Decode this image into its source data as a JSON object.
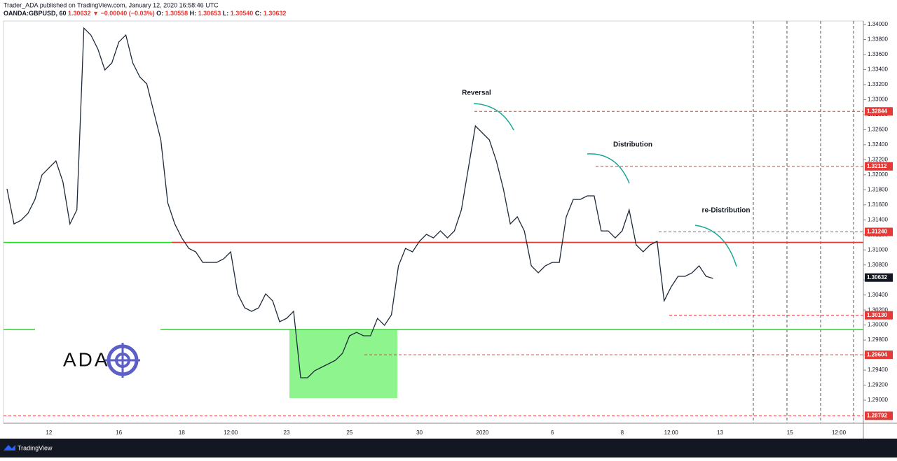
{
  "chart_data": {
    "type": "line",
    "title": "Trader_ADA published on TradingView.com, January 12, 2020 16:58:46 UTC",
    "symbol": "OANDA:GBPUSD, 60",
    "last": "1.30632",
    "change": "▼ −0.00040 (−0.03%)",
    "ohlc": [
      {
        "key": "O:",
        "value": "1.30558"
      },
      {
        "key": "H:",
        "value": "1.30653"
      },
      {
        "key": "L:",
        "value": "1.30540"
      },
      {
        "key": "C:",
        "value": "1.30632"
      }
    ],
    "categories": [
      null,
      null,
      null,
      null,
      null,
      null,
      "12",
      null,
      null,
      null,
      null,
      null,
      null,
      null,
      null,
      null,
      "16",
      null,
      null,
      null,
      null,
      null,
      null,
      null,
      null,
      "18",
      null,
      null,
      null,
      null,
      null,
      null,
      "12:00",
      null,
      null,
      null,
      null,
      null,
      null,
      null,
      "23",
      null,
      null,
      null,
      null,
      null,
      null,
      null,
      null,
      "25",
      null,
      null,
      null,
      null,
      null,
      null,
      null,
      null,
      null,
      "30",
      null,
      null,
      null,
      null,
      null,
      null,
      null,
      null,
      "2020",
      null,
      null,
      null,
      null,
      null,
      null,
      null,
      null,
      null,
      "6",
      null,
      null,
      null,
      null,
      null,
      null,
      null,
      null,
      null,
      "8",
      null,
      null,
      null,
      null,
      null,
      null,
      "12:00",
      null,
      null,
      null,
      null,
      null,
      null,
      "13",
      null,
      null,
      null,
      null,
      null,
      null,
      null,
      null,
      null,
      "15",
      null,
      null,
      null,
      null,
      null,
      null,
      "12:00",
      null,
      null,
      null
    ],
    "series": [
      {
        "name": "GBPUSD",
        "color": "#1e2a3a",
        "values": [
          1.31812,
          1.31346,
          1.31393,
          1.31486,
          1.31672,
          1.31998,
          1.32091,
          1.32184,
          1.31905,
          1.31346,
          1.31533,
          1.33953,
          1.3386,
          1.33674,
          1.33395,
          1.33488,
          1.33767,
          1.3386,
          1.33488,
          1.33302,
          1.33209,
          1.32836,
          1.32464,
          1.31626,
          1.31346,
          1.3116,
          1.3102,
          1.30974,
          1.30834,
          1.30834,
          1.30834,
          1.30881,
          1.30974,
          1.30415,
          1.30229,
          1.30182,
          1.30229,
          1.30415,
          1.30322,
          1.30043,
          1.30089,
          1.30182,
          1.29298,
          1.29298,
          1.29391,
          1.29438,
          1.29484,
          1.29531,
          1.29624,
          1.29857,
          1.29903,
          1.29857,
          1.29857,
          1.30089,
          1.29996,
          1.30136,
          1.30788,
          1.3102,
          1.30974,
          1.31114,
          1.31207,
          1.3116,
          1.31253,
          1.3116,
          1.31253,
          1.31533,
          1.32091,
          1.3265,
          1.32557,
          1.32464,
          1.32184,
          1.31812,
          1.31346,
          1.3144,
          1.31253,
          1.30788,
          1.30695,
          1.30788,
          1.30834,
          1.30834,
          1.3144,
          1.31672,
          1.31672,
          1.31719,
          1.31719,
          1.31253,
          1.31253,
          1.3116,
          1.31253,
          1.31533,
          1.31067,
          1.30974,
          1.31067,
          1.31114,
          1.30322,
          1.30508,
          1.30648,
          1.30648,
          1.30695,
          1.30788,
          1.30648,
          1.3062,
          null,
          null,
          null,
          null,
          null,
          null,
          null,
          null,
          null,
          null,
          null,
          null,
          null,
          null,
          null,
          null,
          null,
          null,
          null,
          null,
          null
        ]
      }
    ],
    "ylim": [
      1.28693,
      1.34047
    ],
    "yticks": [
      {
        "value": 1.29,
        "label": "1.29000"
      },
      {
        "value": 1.292,
        "label": "1.29200"
      },
      {
        "value": 1.294,
        "label": "1.29400"
      },
      {
        "value": 1.296,
        "label": "1.29600"
      },
      {
        "value": 1.298,
        "label": "1.29800"
      },
      {
        "value": 1.3,
        "label": "1.30000"
      },
      {
        "value": 1.302,
        "label": "1.30200"
      },
      {
        "value": 1.304,
        "label": "1.30400"
      },
      {
        "value": 1.306,
        "label": "1.30600"
      },
      {
        "value": 1.308,
        "label": "1.30800"
      },
      {
        "value": 1.31,
        "label": "1.31000"
      },
      {
        "value": 1.312,
        "label": "1.31200"
      },
      {
        "value": 1.314,
        "label": "1.31400"
      },
      {
        "value": 1.316,
        "label": "1.31600"
      },
      {
        "value": 1.318,
        "label": "1.31800"
      },
      {
        "value": 1.32,
        "label": "1.32000"
      },
      {
        "value": 1.322,
        "label": "1.32200"
      },
      {
        "value": 1.324,
        "label": "1.32400"
      },
      {
        "value": 1.326,
        "label": "1.32600"
      },
      {
        "value": 1.328,
        "label": "1.32800"
      },
      {
        "value": 1.33,
        "label": "1.33000"
      },
      {
        "value": 1.332,
        "label": "1.33200"
      },
      {
        "value": 1.334,
        "label": "1.33400"
      },
      {
        "value": 1.336,
        "label": "1.33600"
      },
      {
        "value": 1.338,
        "label": "1.33800"
      },
      {
        "value": 1.34,
        "label": "1.34000"
      }
    ],
    "levels": [
      {
        "value": 1.32844,
        "label": "1.32844",
        "color": "#e53935"
      },
      {
        "value": 1.32112,
        "label": "1.32112",
        "color": "#e53935"
      },
      {
        "value": 1.3124,
        "label": "1.31240",
        "color": "#e53935"
      },
      {
        "value": 1.30632,
        "label": "1.30632",
        "color": "#131722"
      },
      {
        "value": 1.3013,
        "label": "1.30130",
        "color": "#e53935"
      },
      {
        "value": 1.29604,
        "label": "1.29604",
        "color": "#e53935"
      },
      {
        "value": 1.28792,
        "label": "1.28792",
        "color": "#e53935"
      }
    ],
    "lines": [
      {
        "value": 1.311,
        "color": "#22dd22"
      },
      {
        "value": 1.311,
        "color": "#e53935"
      },
      {
        "value": 1.2994,
        "color": "#22dd22"
      }
    ],
    "zone": {
      "from": 1.2994,
      "to": 1.29028,
      "color": "#8ef58e"
    },
    "annotations": [
      "Reversal",
      "Distribution",
      "re-Distribution"
    ],
    "logo": "ADA",
    "footer": "TradingView"
  }
}
